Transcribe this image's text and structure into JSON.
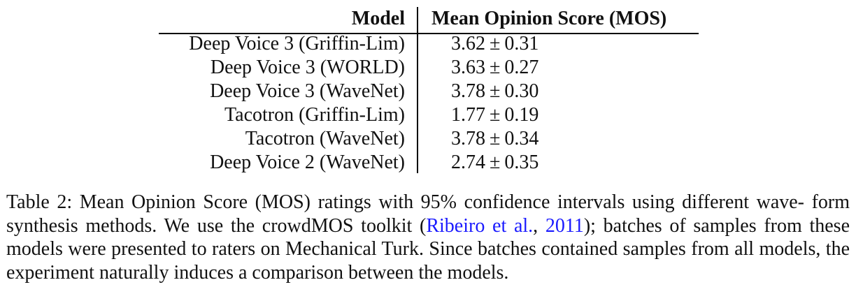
{
  "table": {
    "headers": {
      "model": "Model",
      "mos": "Mean Opinion Score (MOS)"
    },
    "rows": [
      {
        "model": "Deep Voice 3 (Griffin-Lim)",
        "mean": "3.62",
        "pm": "±",
        "ci": "0.31"
      },
      {
        "model": "Deep Voice 3 (WORLD)",
        "mean": "3.63",
        "pm": "±",
        "ci": "0.27"
      },
      {
        "model": "Deep Voice 3 (WaveNet)",
        "mean": "3.78",
        "pm": "±",
        "ci": "0.30"
      },
      {
        "model": "Tacotron (Griffin-Lim)",
        "mean": "1.77",
        "pm": "±",
        "ci": "0.19"
      },
      {
        "model": "Tacotron (WaveNet)",
        "mean": "3.78",
        "pm": "±",
        "ci": "0.34"
      },
      {
        "model": "Deep Voice 2 (WaveNet)",
        "mean": "2.74",
        "pm": "±",
        "ci": "0.35"
      }
    ]
  },
  "caption": {
    "part1": "Table 2: Mean Opinion Score (MOS) ratings with 95% confidence intervals using different wave- form synthesis methods. We use the crowdMOS toolkit (",
    "cite_authors": "Ribeiro et al.",
    "cite_sep": ", ",
    "cite_year": "2011",
    "part2": "); batches of samples from these models were presented to raters on Mechanical Turk. Since batches contained samples from all models, the experiment naturally induces a comparison between the models."
  }
}
